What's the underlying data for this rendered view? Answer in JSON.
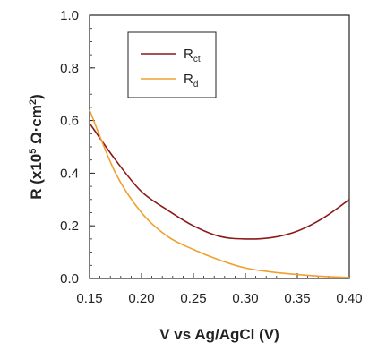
{
  "chart_data": {
    "type": "line",
    "xlabel": "V vs Ag/AgCl (V)",
    "ylabel": {
      "prefix": "R (x10",
      "exp": "5",
      "mid": " Ω·cm",
      "exp2": "2",
      "suffix": ")"
    },
    "xlim": [
      0.15,
      0.4
    ],
    "ylim": [
      0.0,
      1.0
    ],
    "x_ticks": [
      "0.15",
      "0.20",
      "0.25",
      "0.30",
      "0.35",
      "0.40"
    ],
    "y_ticks": [
      "0.0",
      "0.2",
      "0.4",
      "0.6",
      "0.8",
      "1.0"
    ],
    "grid": false,
    "legend_position": "top-right",
    "series": [
      {
        "name": "R",
        "name_sub": "ct",
        "color": "#8b1a1a",
        "x": [
          0.15,
          0.175,
          0.2,
          0.225,
          0.25,
          0.275,
          0.3,
          0.325,
          0.35,
          0.375,
          0.4
        ],
        "y": [
          0.59,
          0.45,
          0.33,
          0.26,
          0.2,
          0.16,
          0.15,
          0.155,
          0.18,
          0.23,
          0.3
        ]
      },
      {
        "name": "R",
        "name_sub": "d",
        "color": "#f0a030",
        "x": [
          0.15,
          0.175,
          0.2,
          0.225,
          0.25,
          0.275,
          0.3,
          0.325,
          0.35,
          0.375,
          0.4
        ],
        "y": [
          0.64,
          0.4,
          0.25,
          0.16,
          0.11,
          0.07,
          0.04,
          0.025,
          0.015,
          0.008,
          0.004
        ]
      }
    ]
  }
}
